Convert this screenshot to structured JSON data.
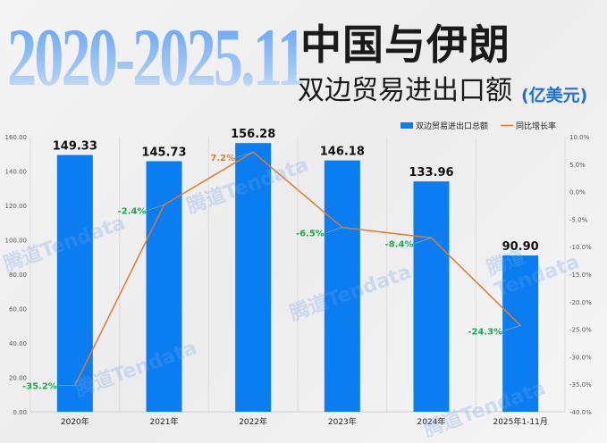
{
  "header": {
    "year_range": "2020-2025.11",
    "title_line1": "中国与伊朗",
    "title_line2": "双边贸易进出口额",
    "unit": "(亿美元)"
  },
  "watermark": "腾道Tendata",
  "chart_data": {
    "type": "bar+line",
    "categories": [
      "2020年",
      "2021年",
      "2022年",
      "2023年",
      "2024年",
      "2025年1-11月"
    ],
    "series": [
      {
        "name": "双边贸易进出口总额",
        "type": "bar",
        "axis": "left",
        "values": [
          149.33,
          145.73,
          156.28,
          146.18,
          133.96,
          90.9
        ],
        "labels": [
          "149.33",
          "145.73",
          "156.28",
          "146.18",
          "133.96",
          "90.90"
        ],
        "color": "#0a7ef0"
      },
      {
        "name": "同比增长率",
        "type": "line",
        "axis": "right",
        "values": [
          -35.2,
          -2.4,
          7.2,
          -6.5,
          -8.4,
          -24.3
        ],
        "labels": [
          "-35.2%",
          "-2.4%",
          "7.2%",
          "-6.5%",
          "-8.4%",
          "-24.3%"
        ],
        "color": "#e07b2a",
        "label_colors": {
          "negative": "#1aaa4a",
          "positive": "#e07b2a"
        }
      }
    ],
    "y_left": {
      "ylim": [
        0,
        160
      ],
      "ticks": [
        "0.00",
        "20.00",
        "40.00",
        "60.00",
        "80.00",
        "100.00",
        "120.00",
        "140.00",
        "160.00"
      ]
    },
    "y_right": {
      "ylim": [
        -40,
        10
      ],
      "ticks": [
        "-40.0%",
        "-35.0%",
        "-30.0%",
        "-25.0%",
        "-20.0%",
        "-15.0%",
        "-10.0%",
        "-5.0%",
        "0.0%",
        "5.0%",
        "10.0%"
      ]
    },
    "grid": "vertical",
    "legend": "top-right"
  }
}
